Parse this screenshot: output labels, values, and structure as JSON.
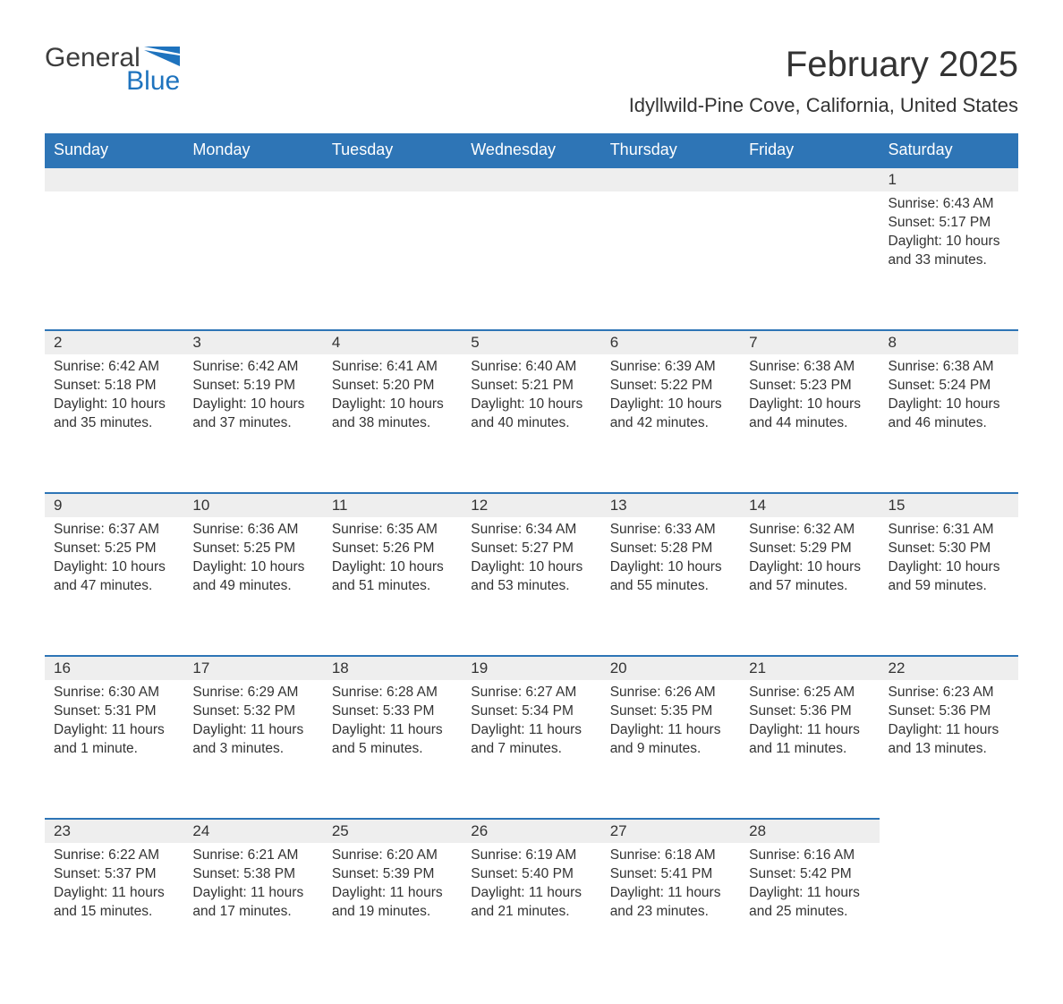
{
  "brand": {
    "text1": "General",
    "text2": "Blue",
    "text1_color": "#3d3d3d",
    "text2_color": "#1e73be",
    "shape_color": "#1e73be"
  },
  "title": "February 2025",
  "location": "Idyllwild-Pine Cove, California, United States",
  "colors": {
    "header_bg": "#2e75b6",
    "header_text": "#ffffff",
    "daynum_bg": "#eeeeee",
    "daynum_border": "#2e75b6",
    "body_text": "#333333",
    "page_bg": "#ffffff"
  },
  "columns": [
    "Sunday",
    "Monday",
    "Tuesday",
    "Wednesday",
    "Thursday",
    "Friday",
    "Saturday"
  ],
  "weeks": [
    [
      null,
      null,
      null,
      null,
      null,
      null,
      {
        "n": "1",
        "sunrise": "Sunrise: 6:43 AM",
        "sunset": "Sunset: 5:17 PM",
        "daylight": "Daylight: 10 hours and 33 minutes."
      }
    ],
    [
      {
        "n": "2",
        "sunrise": "Sunrise: 6:42 AM",
        "sunset": "Sunset: 5:18 PM",
        "daylight": "Daylight: 10 hours and 35 minutes."
      },
      {
        "n": "3",
        "sunrise": "Sunrise: 6:42 AM",
        "sunset": "Sunset: 5:19 PM",
        "daylight": "Daylight: 10 hours and 37 minutes."
      },
      {
        "n": "4",
        "sunrise": "Sunrise: 6:41 AM",
        "sunset": "Sunset: 5:20 PM",
        "daylight": "Daylight: 10 hours and 38 minutes."
      },
      {
        "n": "5",
        "sunrise": "Sunrise: 6:40 AM",
        "sunset": "Sunset: 5:21 PM",
        "daylight": "Daylight: 10 hours and 40 minutes."
      },
      {
        "n": "6",
        "sunrise": "Sunrise: 6:39 AM",
        "sunset": "Sunset: 5:22 PM",
        "daylight": "Daylight: 10 hours and 42 minutes."
      },
      {
        "n": "7",
        "sunrise": "Sunrise: 6:38 AM",
        "sunset": "Sunset: 5:23 PM",
        "daylight": "Daylight: 10 hours and 44 minutes."
      },
      {
        "n": "8",
        "sunrise": "Sunrise: 6:38 AM",
        "sunset": "Sunset: 5:24 PM",
        "daylight": "Daylight: 10 hours and 46 minutes."
      }
    ],
    [
      {
        "n": "9",
        "sunrise": "Sunrise: 6:37 AM",
        "sunset": "Sunset: 5:25 PM",
        "daylight": "Daylight: 10 hours and 47 minutes."
      },
      {
        "n": "10",
        "sunrise": "Sunrise: 6:36 AM",
        "sunset": "Sunset: 5:25 PM",
        "daylight": "Daylight: 10 hours and 49 minutes."
      },
      {
        "n": "11",
        "sunrise": "Sunrise: 6:35 AM",
        "sunset": "Sunset: 5:26 PM",
        "daylight": "Daylight: 10 hours and 51 minutes."
      },
      {
        "n": "12",
        "sunrise": "Sunrise: 6:34 AM",
        "sunset": "Sunset: 5:27 PM",
        "daylight": "Daylight: 10 hours and 53 minutes."
      },
      {
        "n": "13",
        "sunrise": "Sunrise: 6:33 AM",
        "sunset": "Sunset: 5:28 PM",
        "daylight": "Daylight: 10 hours and 55 minutes."
      },
      {
        "n": "14",
        "sunrise": "Sunrise: 6:32 AM",
        "sunset": "Sunset: 5:29 PM",
        "daylight": "Daylight: 10 hours and 57 minutes."
      },
      {
        "n": "15",
        "sunrise": "Sunrise: 6:31 AM",
        "sunset": "Sunset: 5:30 PM",
        "daylight": "Daylight: 10 hours and 59 minutes."
      }
    ],
    [
      {
        "n": "16",
        "sunrise": "Sunrise: 6:30 AM",
        "sunset": "Sunset: 5:31 PM",
        "daylight": "Daylight: 11 hours and 1 minute."
      },
      {
        "n": "17",
        "sunrise": "Sunrise: 6:29 AM",
        "sunset": "Sunset: 5:32 PM",
        "daylight": "Daylight: 11 hours and 3 minutes."
      },
      {
        "n": "18",
        "sunrise": "Sunrise: 6:28 AM",
        "sunset": "Sunset: 5:33 PM",
        "daylight": "Daylight: 11 hours and 5 minutes."
      },
      {
        "n": "19",
        "sunrise": "Sunrise: 6:27 AM",
        "sunset": "Sunset: 5:34 PM",
        "daylight": "Daylight: 11 hours and 7 minutes."
      },
      {
        "n": "20",
        "sunrise": "Sunrise: 6:26 AM",
        "sunset": "Sunset: 5:35 PM",
        "daylight": "Daylight: 11 hours and 9 minutes."
      },
      {
        "n": "21",
        "sunrise": "Sunrise: 6:25 AM",
        "sunset": "Sunset: 5:36 PM",
        "daylight": "Daylight: 11 hours and 11 minutes."
      },
      {
        "n": "22",
        "sunrise": "Sunrise: 6:23 AM",
        "sunset": "Sunset: 5:36 PM",
        "daylight": "Daylight: 11 hours and 13 minutes."
      }
    ],
    [
      {
        "n": "23",
        "sunrise": "Sunrise: 6:22 AM",
        "sunset": "Sunset: 5:37 PM",
        "daylight": "Daylight: 11 hours and 15 minutes."
      },
      {
        "n": "24",
        "sunrise": "Sunrise: 6:21 AM",
        "sunset": "Sunset: 5:38 PM",
        "daylight": "Daylight: 11 hours and 17 minutes."
      },
      {
        "n": "25",
        "sunrise": "Sunrise: 6:20 AM",
        "sunset": "Sunset: 5:39 PM",
        "daylight": "Daylight: 11 hours and 19 minutes."
      },
      {
        "n": "26",
        "sunrise": "Sunrise: 6:19 AM",
        "sunset": "Sunset: 5:40 PM",
        "daylight": "Daylight: 11 hours and 21 minutes."
      },
      {
        "n": "27",
        "sunrise": "Sunrise: 6:18 AM",
        "sunset": "Sunset: 5:41 PM",
        "daylight": "Daylight: 11 hours and 23 minutes."
      },
      {
        "n": "28",
        "sunrise": "Sunrise: 6:16 AM",
        "sunset": "Sunset: 5:42 PM",
        "daylight": "Daylight: 11 hours and 25 minutes."
      },
      null
    ]
  ]
}
